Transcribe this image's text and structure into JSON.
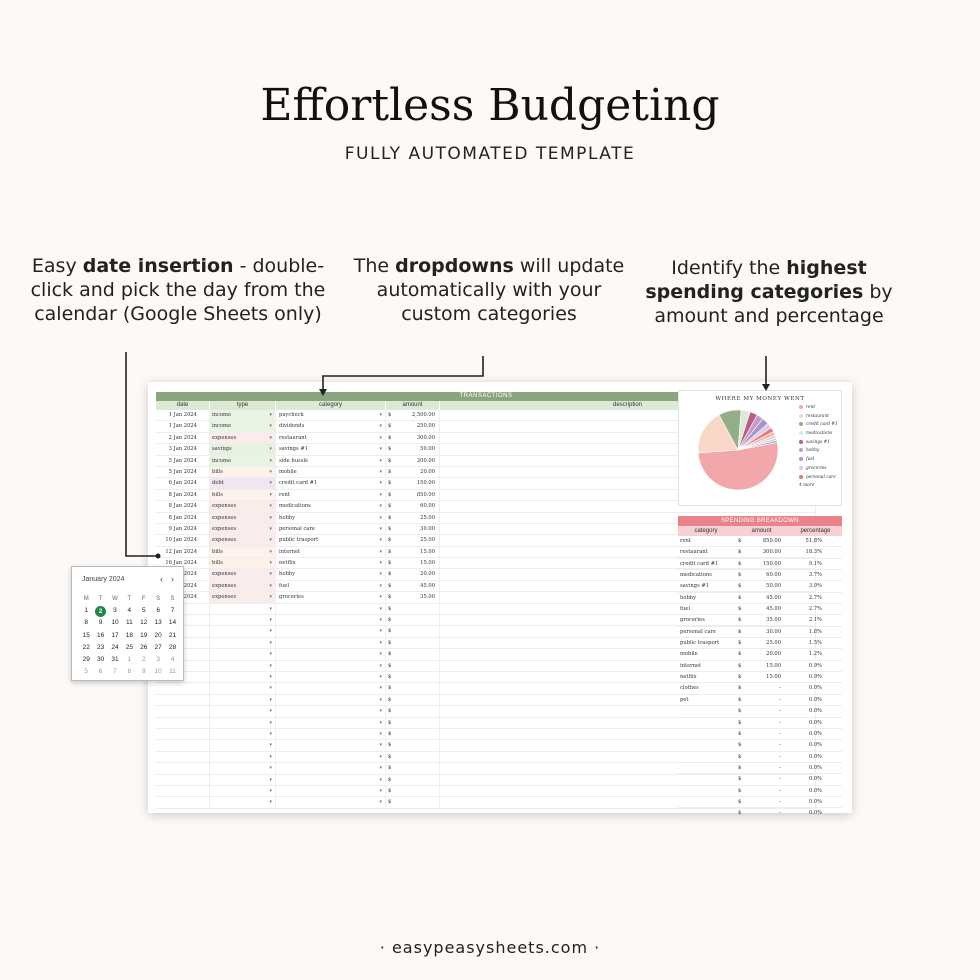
{
  "title": "Effortless Budgeting",
  "subtitle": "FULLY AUTOMATED TEMPLATE",
  "callouts": {
    "date": {
      "pre": "Easy ",
      "bold": "date insertion",
      "post": " - double-click and pick the day from the calendar (Google Sheets only)"
    },
    "dropdowns": {
      "pre": "The ",
      "bold": "dropdowns",
      "post": " will update automatically with your custom categories"
    },
    "highest": {
      "pre": "Identify the ",
      "bold": "highest spending categories",
      "post": " by amount and percentage"
    }
  },
  "transactions": {
    "title": "TRANSACTIONS",
    "headers": {
      "date": "date",
      "type": "type",
      "category": "category",
      "amount": "amount",
      "description": "description"
    },
    "currency": "$",
    "dropdown_icon": "▾",
    "rows": [
      {
        "date": "1 Jan 2024",
        "type": "income",
        "category": "paycheck",
        "amount": "2,500.00"
      },
      {
        "date": "1 Jan 2024",
        "type": "income",
        "category": "dividends",
        "amount": "250.00"
      },
      {
        "date": "2 Jan 2024",
        "type": "expenses",
        "category": "restaurant",
        "amount": "300.00"
      },
      {
        "date": "3 Jan 2024",
        "type": "savings",
        "category": "savings #1",
        "amount": "50.00"
      },
      {
        "date": "5 Jan 2024",
        "type": "income",
        "category": "side hussle",
        "amount": "200.00"
      },
      {
        "date": "5 Jan 2024",
        "type": "bills",
        "category": "mobile",
        "amount": "20.00"
      },
      {
        "date": "6 Jan 2024",
        "type": "debt",
        "category": "credit card #1",
        "amount": "150.00"
      },
      {
        "date": "8 Jan 2024",
        "type": "bills",
        "category": "rent",
        "amount": "850.00"
      },
      {
        "date": "8 Jan 2024",
        "type": "expenses",
        "category": "medications",
        "amount": "60.00"
      },
      {
        "date": "8 Jan 2024",
        "type": "expenses",
        "category": "hobby",
        "amount": "25.00"
      },
      {
        "date": "9 Jan 2024",
        "type": "expenses",
        "category": "personal care",
        "amount": "30.00"
      },
      {
        "date": "10 Jan 2024",
        "type": "expenses",
        "category": "public trasport",
        "amount": "25.00"
      },
      {
        "date": "12 Jan 2024",
        "type": "bills",
        "category": "internet",
        "amount": "15.00"
      },
      {
        "date": "16 Jan 2024",
        "type": "bills",
        "category": "netflix",
        "amount": "15.00"
      },
      {
        "date": "2024",
        "type": "expenses",
        "category": "hobby",
        "amount": "20.00"
      },
      {
        "date": "2024",
        "type": "expenses",
        "category": "fuel",
        "amount": "45.00"
      },
      {
        "date": "2024",
        "type": "expenses",
        "category": "groceries",
        "amount": "35.00"
      }
    ],
    "empty_rows": 18
  },
  "pie": {
    "title": "WHERE MY MONEY WENT",
    "more": "4 more",
    "chart_data": {
      "type": "pie",
      "categories": [
        "rent",
        "restaurant",
        "credit card #1",
        "medications",
        "savings #1",
        "hobby",
        "fuel",
        "groceries",
        "personal care",
        "public trasport",
        "mobile",
        "internet",
        "netflix"
      ],
      "values": [
        850,
        300,
        150,
        60,
        50,
        45,
        45,
        35,
        30,
        25,
        20,
        15,
        15
      ],
      "colors": [
        "#f2a7ab",
        "#f8d7c8",
        "#93ae89",
        "#dcead5",
        "#b85f7f",
        "#c79cc6",
        "#a596c7",
        "#d8cde6",
        "#e8777e",
        "#f3b6a5",
        "#f4c9cf",
        "#bcd3e6",
        "#9fb8d9"
      ],
      "legend_count": 9
    }
  },
  "breakdown": {
    "title": "SPENDING BREAKDOWN",
    "headers": {
      "category": "category",
      "amount": "amount",
      "percentage": "percentage"
    },
    "currency": "$",
    "rows": [
      {
        "category": "rent",
        "amount": "850.00",
        "pct": "51.8%"
      },
      {
        "category": "restaurant",
        "amount": "300.00",
        "pct": "18.3%"
      },
      {
        "category": "credit card #1",
        "amount": "150.00",
        "pct": "9.1%"
      },
      {
        "category": "medications",
        "amount": "60.00",
        "pct": "3.7%"
      },
      {
        "category": "savings #1",
        "amount": "50.00",
        "pct": "3.0%"
      },
      {
        "category": "hobby",
        "amount": "45.00",
        "pct": "2.7%"
      },
      {
        "category": "fuel",
        "amount": "45.00",
        "pct": "2.7%"
      },
      {
        "category": "groceries",
        "amount": "35.00",
        "pct": "2.1%"
      },
      {
        "category": "personal care",
        "amount": "30.00",
        "pct": "1.8%"
      },
      {
        "category": "public trasport",
        "amount": "25.00",
        "pct": "1.5%"
      },
      {
        "category": "mobile",
        "amount": "20.00",
        "pct": "1.2%"
      },
      {
        "category": "internet",
        "amount": "15.00",
        "pct": "0.9%"
      },
      {
        "category": "netflix",
        "amount": "15.00",
        "pct": "0.9%"
      },
      {
        "category": "clothes",
        "amount": "-",
        "pct": "0.0%"
      },
      {
        "category": "pet",
        "amount": "-",
        "pct": "0.0%"
      },
      {
        "category": "",
        "amount": "-",
        "pct": "0.0%"
      },
      {
        "category": "",
        "amount": "-",
        "pct": "0.0%"
      },
      {
        "category": "",
        "amount": "-",
        "pct": "0.0%"
      },
      {
        "category": "",
        "amount": "-",
        "pct": "0.0%"
      },
      {
        "category": "",
        "amount": "-",
        "pct": "0.0%"
      },
      {
        "category": "",
        "amount": "-",
        "pct": "0.0%"
      },
      {
        "category": "",
        "amount": "-",
        "pct": "0.0%"
      },
      {
        "category": "",
        "amount": "-",
        "pct": "0.0%"
      },
      {
        "category": "",
        "amount": "-",
        "pct": "0.0%"
      },
      {
        "category": "",
        "amount": "-",
        "pct": "0.0%"
      }
    ]
  },
  "calendar": {
    "month": "January 2024",
    "prev_icon": "‹",
    "next_icon": "›",
    "weekdays": [
      "M",
      "T",
      "W",
      "T",
      "F",
      "S",
      "S"
    ],
    "selected": "2",
    "weeks": [
      [
        "1",
        "2",
        "3",
        "4",
        "5",
        "6",
        "7"
      ],
      [
        "8",
        "9",
        "10",
        "11",
        "12",
        "13",
        "14"
      ],
      [
        "15",
        "16",
        "17",
        "18",
        "19",
        "20",
        "21"
      ],
      [
        "22",
        "23",
        "24",
        "25",
        "26",
        "27",
        "28"
      ],
      [
        "29",
        "30",
        "31",
        "1",
        "2",
        "3",
        "4"
      ],
      [
        "5",
        "6",
        "7",
        "8",
        "9",
        "10",
        "11"
      ]
    ],
    "muted_from_week": 4,
    "muted_from_index": 3
  },
  "footer": "· easypeasysheets.com ·"
}
